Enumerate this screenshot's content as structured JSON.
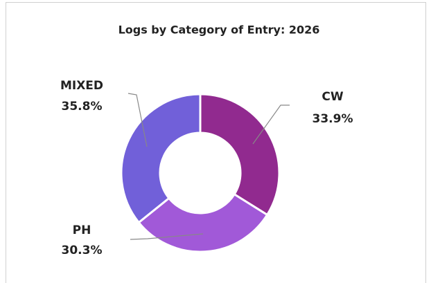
{
  "chart_data": {
    "type": "donut",
    "title": "Logs by Category of Entry: 2026",
    "categories": [
      "CW",
      "PH",
      "MIXED"
    ],
    "values": [
      33.9,
      30.3,
      35.8
    ],
    "value_labels": [
      "33.9%",
      "30.3%",
      "35.8%"
    ],
    "colors": [
      "#912a8f",
      "#a159d8",
      "#7160d9"
    ]
  }
}
